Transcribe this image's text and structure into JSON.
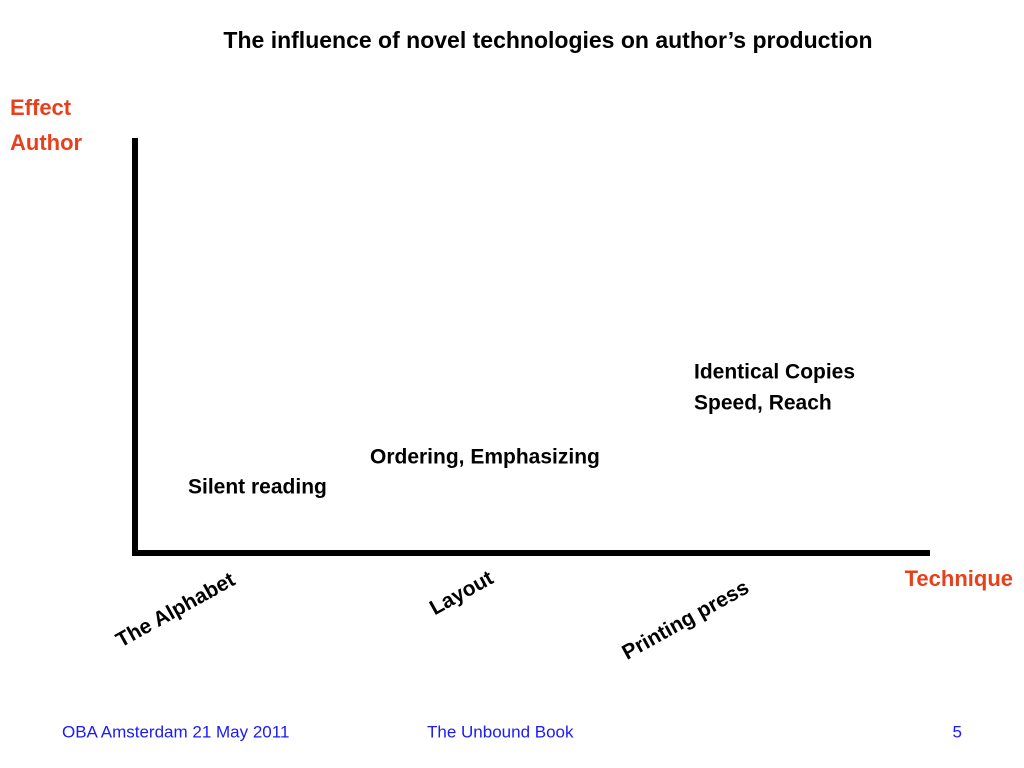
{
  "title": "The influence of novel technologies on author’s production",
  "y_axis_label": [
    "Effect",
    "Author"
  ],
  "x_axis_label": "Technique",
  "techniques": [
    "The Alphabet",
    "Layout",
    "Printing press"
  ],
  "effects": [
    "Silent reading",
    "Ordering, Emphasizing",
    "Identical Copies",
    "Speed, Reach"
  ],
  "footer": {
    "left": "OBA Amsterdam 21 May 2011",
    "center": "The Unbound Book",
    "page": "5"
  }
}
